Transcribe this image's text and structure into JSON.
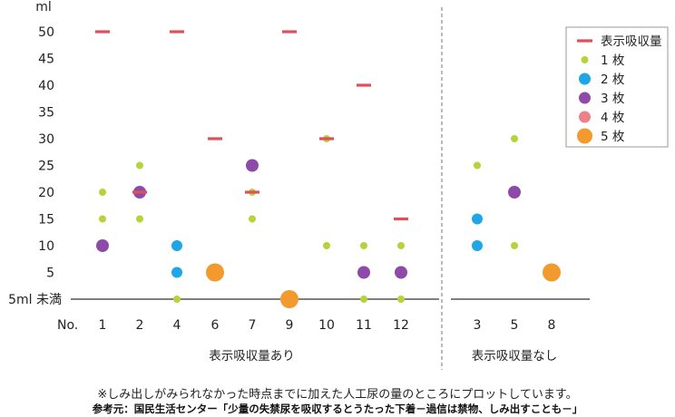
{
  "chart_data": {
    "type": "scatter",
    "y_unit": "ml",
    "y_ticks": [
      "5ml 未満",
      "5",
      "10",
      "15",
      "20",
      "25",
      "30",
      "35",
      "40",
      "45",
      "50"
    ],
    "ylim": [
      0,
      50
    ],
    "x_prefix": "No.",
    "groups": [
      {
        "label": "表示吸収量あり",
        "items": [
          "1",
          "2",
          "4",
          "6",
          "7",
          "9",
          "10",
          "11",
          "12"
        ]
      },
      {
        "label": "表示吸収量なし",
        "items": [
          "3",
          "5",
          "8"
        ]
      }
    ],
    "legend": [
      {
        "key": "display",
        "label": "表示吸収量",
        "marker": "dash",
        "color": "#e0505a"
      },
      {
        "key": "s1",
        "label": "1 枚",
        "marker": "circle",
        "color": "#b5d33a",
        "size": "small"
      },
      {
        "key": "s2",
        "label": "2 枚",
        "marker": "circle",
        "color": "#1ea6e6",
        "size": "medium"
      },
      {
        "key": "s3",
        "label": "3 枚",
        "marker": "circle",
        "color": "#8e4aa8",
        "size": "medium"
      },
      {
        "key": "s4",
        "label": "4 枚",
        "marker": "circle",
        "color": "#ee8088",
        "size": "medium"
      },
      {
        "key": "s5",
        "label": "5 枚",
        "marker": "circle",
        "color": "#f29a2e",
        "size": "large"
      }
    ],
    "display_absorption": [
      {
        "no": "1",
        "value": 50
      },
      {
        "no": "2",
        "value": 20
      },
      {
        "no": "4",
        "value": 50
      },
      {
        "no": "6",
        "value": 30
      },
      {
        "no": "7",
        "value": 20
      },
      {
        "no": "9",
        "value": 50
      },
      {
        "no": "10",
        "value": 30
      },
      {
        "no": "11",
        "value": 40
      },
      {
        "no": "12",
        "value": 15
      }
    ],
    "points": [
      {
        "no": "1",
        "sheets": 1,
        "value": 20
      },
      {
        "no": "1",
        "sheets": 1,
        "value": 15
      },
      {
        "no": "1",
        "sheets": 3,
        "value": 10
      },
      {
        "no": "2",
        "sheets": 1,
        "value": 25
      },
      {
        "no": "2",
        "sheets": 3,
        "value": 20
      },
      {
        "no": "2",
        "sheets": 1,
        "value": 15
      },
      {
        "no": "4",
        "sheets": 2,
        "value": 10
      },
      {
        "no": "4",
        "sheets": 2,
        "value": 5
      },
      {
        "no": "4",
        "sheets": 1,
        "value": 0
      },
      {
        "no": "6",
        "sheets": 5,
        "value": 5
      },
      {
        "no": "7",
        "sheets": 3,
        "value": 25
      },
      {
        "no": "7",
        "sheets": 1,
        "value": 20
      },
      {
        "no": "7",
        "sheets": 1,
        "value": 15
      },
      {
        "no": "9",
        "sheets": 5,
        "value": 0
      },
      {
        "no": "10",
        "sheets": 1,
        "value": 30
      },
      {
        "no": "10",
        "sheets": 1,
        "value": 10
      },
      {
        "no": "11",
        "sheets": 1,
        "value": 10
      },
      {
        "no": "11",
        "sheets": 3,
        "value": 5
      },
      {
        "no": "11",
        "sheets": 1,
        "value": 0
      },
      {
        "no": "12",
        "sheets": 1,
        "value": 10
      },
      {
        "no": "12",
        "sheets": 3,
        "value": 5
      },
      {
        "no": "12",
        "sheets": 1,
        "value": 0
      },
      {
        "no": "3",
        "sheets": 1,
        "value": 25
      },
      {
        "no": "3",
        "sheets": 2,
        "value": 15
      },
      {
        "no": "3",
        "sheets": 2,
        "value": 10
      },
      {
        "no": "5",
        "sheets": 1,
        "value": 30
      },
      {
        "no": "5",
        "sheets": 3,
        "value": 20
      },
      {
        "no": "5",
        "sheets": 1,
        "value": 10
      },
      {
        "no": "8",
        "sheets": 5,
        "value": 5
      }
    ]
  },
  "notes": {
    "footnote": "※しみ出しがみられなかった時点までに加えた人工尿の量のところにプロットしています。",
    "source": "参考元：国民生活センター「少量の失禁尿を吸収するとうたった下着－過信は禁物、しみ出すことも－」"
  }
}
